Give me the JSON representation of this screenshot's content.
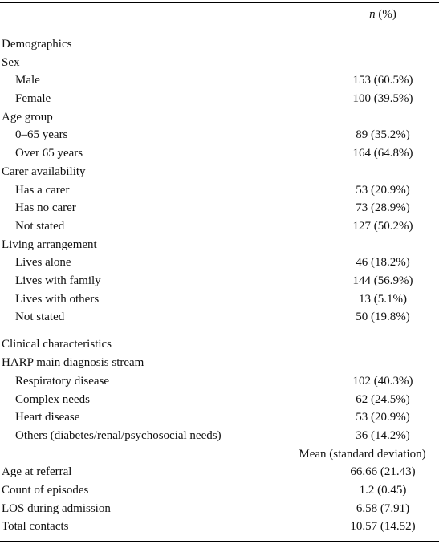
{
  "header": {
    "n_symbol": "n",
    "pct": "(%)"
  },
  "sections": {
    "demographics": "Demographics",
    "clinical": "Clinical characteristics"
  },
  "rows": [
    {
      "label": "Sex",
      "value": ""
    },
    {
      "label": "Male",
      "value": "153 (60.5%)"
    },
    {
      "label": "Female",
      "value": "100 (39.5%)"
    },
    {
      "label": "Age group",
      "value": ""
    },
    {
      "label": "0–65 years",
      "value": "89 (35.2%)"
    },
    {
      "label": "Over 65 years",
      "value": "164 (64.8%)"
    },
    {
      "label": "Carer availability",
      "value": ""
    },
    {
      "label": "Has a carer",
      "value": "53 (20.9%)"
    },
    {
      "label": "Has no carer",
      "value": "73 (28.9%)"
    },
    {
      "label": "Not stated",
      "value": "127 (50.2%)"
    },
    {
      "label": "Living arrangement",
      "value": ""
    },
    {
      "label": "Lives alone",
      "value": "46 (18.2%)"
    },
    {
      "label": "Lives with family",
      "value": "144 (56.9%)"
    },
    {
      "label": "Lives with others",
      "value": "13 (5.1%)"
    },
    {
      "label": "Not stated",
      "value": "50 (19.8%)"
    },
    {
      "label": "HARP main diagnosis stream",
      "value": ""
    },
    {
      "label": "Respiratory disease",
      "value": "102 (40.3%)"
    },
    {
      "label": "Complex needs",
      "value": "62 (24.5%)"
    },
    {
      "label": "Heart disease",
      "value": "53 (20.9%)"
    },
    {
      "label": "Others (diabetes/renal/psychosocial needs)",
      "value": "36 (14.2%)"
    }
  ],
  "mean_header": "Mean (standard deviation)",
  "mean_rows": [
    {
      "label": "Age at referral",
      "value": "66.66 (21.43)"
    },
    {
      "label": "Count of episodes",
      "value": "1.2 (0.45)"
    },
    {
      "label": "LOS during admission",
      "value": "6.58 (7.91)"
    },
    {
      "label": "Total contacts",
      "value": "10.57 (14.52)"
    }
  ]
}
